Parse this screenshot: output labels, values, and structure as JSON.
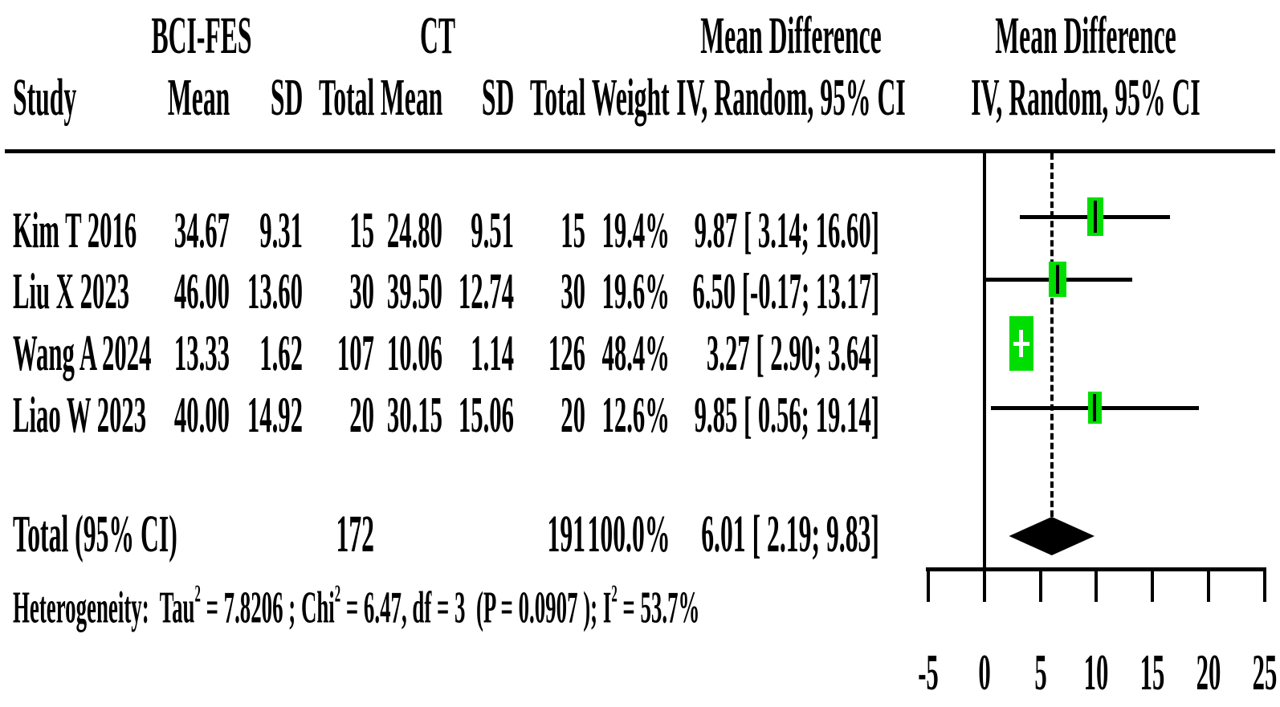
{
  "figure": {
    "group1_header": "BCI-FES",
    "group2_header": "CT",
    "effect_header_left": {
      "line1": "Mean Difference",
      "line2": "IV, Random, 95% CI"
    },
    "effect_header_right": {
      "line1": "Mean Difference",
      "line2": "IV, Random, 95% CI"
    },
    "col_headers": {
      "study": "Study",
      "mean1": "Mean",
      "sd1": "SD",
      "total1": "Total",
      "mean2": "Mean",
      "sd2": "SD",
      "total2": "Total",
      "weight": "Weight"
    }
  },
  "rows": [
    {
      "study": "Kim T 2016",
      "mean1": "34.67",
      "sd1": "9.31",
      "total1": "15",
      "mean2": "24.80",
      "sd2": "9.51",
      "total2": "15",
      "weight": "19.4%",
      "ci": "9.87 [ 3.14; 16.60]"
    },
    {
      "study": "Liu X 2023",
      "mean1": "46.00",
      "sd1": "13.60",
      "total1": "30",
      "mean2": "39.50",
      "sd2": "12.74",
      "total2": "30",
      "weight": "19.6%",
      "ci": "6.50 [-0.17; 13.17]"
    },
    {
      "study": "Wang A 2024",
      "mean1": "13.33",
      "sd1": "1.62",
      "total1": "107",
      "mean2": "10.06",
      "sd2": "1.14",
      "total2": "126",
      "weight": "48.4%",
      "ci": "3.27 [ 2.90; 3.64]"
    },
    {
      "study": "Liao W 2023",
      "mean1": "40.00",
      "sd1": "14.92",
      "total1": "20",
      "mean2": "30.15",
      "sd2": "15.06",
      "total2": "20",
      "weight": "12.6%",
      "ci": "9.85 [ 0.56; 19.14]"
    }
  ],
  "total_row": {
    "label": "Total (95% CI)",
    "total1": "172",
    "total2": "191",
    "weight": "100.0%",
    "ci": "6.01 [ 2.19; 9.83]"
  },
  "heterogeneity": {
    "p1": "Heterogeneity:  Tau",
    "sup": "2",
    "p2": " = 7.8206 ; Chi",
    "p3": " = 6.47, df = 3  (P = 0.0907 ); I",
    "p4": " = 53.7%"
  },
  "chart_data": {
    "type": "forest",
    "effect_measure": "Mean Difference (IV, Random, 95% CI)",
    "x_ticks": [
      -5,
      0,
      5,
      10,
      15,
      20,
      25
    ],
    "x_range": [
      -5,
      25
    ],
    "zero_line": 0,
    "pooled_dashed_line_at": 6.01,
    "studies": [
      {
        "name": "Kim T 2016",
        "md": 9.87,
        "ci_low": 3.14,
        "ci_high": 16.6,
        "weight_pct": 19.4
      },
      {
        "name": "Liu X 2023",
        "md": 6.5,
        "ci_low": -0.17,
        "ci_high": 13.17,
        "weight_pct": 19.6
      },
      {
        "name": "Wang A 2024",
        "md": 3.27,
        "ci_low": 2.9,
        "ci_high": 3.64,
        "weight_pct": 48.4
      },
      {
        "name": "Liao W 2023",
        "md": 9.85,
        "ci_low": 0.56,
        "ci_high": 19.14,
        "weight_pct": 12.6
      }
    ],
    "pooled": {
      "label": "Total (95% CI)",
      "md": 6.01,
      "ci_low": 2.19,
      "ci_high": 9.83,
      "weight_pct": 100.0
    },
    "heterogeneity_stats": {
      "tau2": 7.8206,
      "chi2": 6.47,
      "df": 3,
      "p": 0.0907,
      "i2_pct": 53.7
    },
    "marker_color": "#00dd00",
    "diamond_color": "#000000"
  }
}
